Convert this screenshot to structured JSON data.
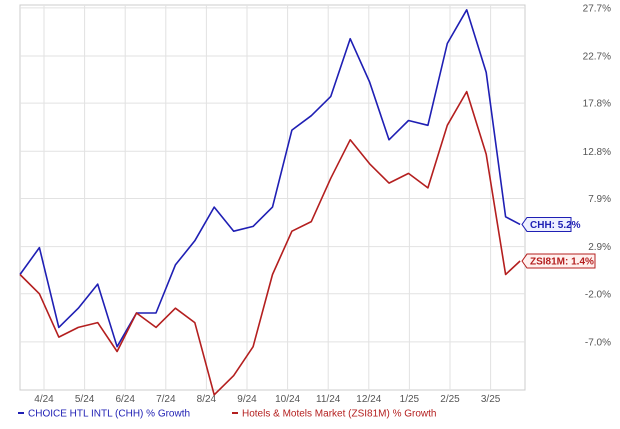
{
  "chart_data": {
    "type": "line",
    "title": "",
    "xlabel": "",
    "ylabel": "",
    "ylim": [
      -12,
      28
    ],
    "x_ticks": [
      "4/24",
      "5/24",
      "6/24",
      "7/24",
      "8/24",
      "9/24",
      "10/24",
      "11/24",
      "12/24",
      "1/25",
      "2/25",
      "3/25"
    ],
    "y_ticks": [
      "27.7%",
      "22.7%",
      "17.8%",
      "12.8%",
      "7.9%",
      "2.9%",
      "-2.0%",
      "-7.0%"
    ],
    "grid": true,
    "legend_position": "bottom",
    "series": [
      {
        "name": "CHOICE HTL INTL (CHH) % Growth",
        "color": "#1f1fb4",
        "end_label": "CHH: 5.2%",
        "x": [
          0,
          2,
          4,
          6,
          8,
          10,
          12,
          14,
          16,
          18,
          20,
          22,
          24,
          26,
          28,
          30,
          32,
          34,
          36,
          38,
          40,
          42,
          44,
          46,
          48,
          50,
          51.5
        ],
        "values": [
          0.0,
          2.8,
          -5.5,
          -3.5,
          -1.0,
          -7.5,
          -4.0,
          -4.0,
          1.0,
          3.5,
          7.0,
          4.5,
          5.0,
          7.0,
          15.0,
          16.5,
          18.5,
          24.5,
          20.0,
          14.0,
          16.0,
          15.5,
          24.0,
          27.5,
          21.0,
          6.0,
          5.2
        ]
      },
      {
        "name": "Hotels & Motels Market (ZSI81M) % Growth",
        "color": "#b41f1f",
        "end_label": "ZSI81M: 1.4%",
        "x": [
          0,
          2,
          4,
          6,
          8,
          10,
          12,
          14,
          16,
          18,
          20,
          22,
          24,
          26,
          28,
          30,
          32,
          34,
          36,
          38,
          40,
          42,
          44,
          46,
          48,
          50,
          51.5
        ],
        "values": [
          0.0,
          -2.0,
          -6.5,
          -5.5,
          -5.0,
          -8.0,
          -4.0,
          -5.5,
          -3.5,
          -5.0,
          -12.5,
          -10.5,
          -7.5,
          0.0,
          4.5,
          5.5,
          10.0,
          14.0,
          11.5,
          9.5,
          10.5,
          9.0,
          15.5,
          19.0,
          12.5,
          0.0,
          1.4
        ]
      }
    ]
  }
}
